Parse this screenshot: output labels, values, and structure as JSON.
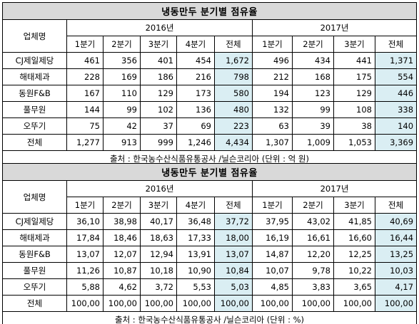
{
  "tables": [
    {
      "title": "냉동만두 분기별 점유율",
      "company_header": "업체명",
      "years": [
        "2016년",
        "2017년"
      ],
      "quarters_2016": [
        "1분기",
        "2분기",
        "3분기",
        "4분기",
        "전체"
      ],
      "quarters_2017": [
        "1분기",
        "2분기",
        "3분기",
        "전체"
      ],
      "rows": [
        {
          "name": "CJ제일제당",
          "v": [
            "461",
            "356",
            "401",
            "454",
            "1,672",
            "496",
            "434",
            "441",
            "1,371"
          ]
        },
        {
          "name": "해태제과",
          "v": [
            "228",
            "169",
            "186",
            "216",
            "798",
            "212",
            "168",
            "175",
            "554"
          ]
        },
        {
          "name": "동원F&B",
          "v": [
            "167",
            "110",
            "129",
            "173",
            "580",
            "194",
            "123",
            "129",
            "446"
          ]
        },
        {
          "name": "풀무원",
          "v": [
            "144",
            "99",
            "102",
            "136",
            "480",
            "132",
            "99",
            "108",
            "338"
          ]
        },
        {
          "name": "오뚜기",
          "v": [
            "75",
            "42",
            "37",
            "69",
            "223",
            "63",
            "39",
            "38",
            "140"
          ]
        },
        {
          "name": "전체",
          "v": [
            "1,277",
            "913",
            "999",
            "1,246",
            "4,434",
            "1,307",
            "1,009",
            "1,053",
            "3,369"
          ]
        }
      ],
      "source": "출처 : 한국농수산식품유통공사 /닐슨코리아 (단위 : 억 원)"
    },
    {
      "title": "냉동만두 분기별 점유율",
      "company_header": "업체명",
      "years": [
        "2016년",
        "2017년"
      ],
      "quarters_2016": [
        "1분기",
        "2분기",
        "3분기",
        "4분기",
        "전체"
      ],
      "quarters_2017": [
        "1분기",
        "2분기",
        "3분기",
        "전체"
      ],
      "rows": [
        {
          "name": "CJ제일제당",
          "v": [
            "36,10",
            "38,98",
            "40,17",
            "36,48",
            "37,72",
            "37,95",
            "43,02",
            "41,85",
            "40,69"
          ]
        },
        {
          "name": "해태제과",
          "v": [
            "17,84",
            "18,46",
            "18,63",
            "17,33",
            "18,00",
            "16,19",
            "16,61",
            "16,60",
            "16,44"
          ]
        },
        {
          "name": "동원F&B",
          "v": [
            "13,07",
            "12,07",
            "12,94",
            "13,91",
            "13,07",
            "14,87",
            "12,20",
            "12,25",
            "13,25"
          ]
        },
        {
          "name": "풀무원",
          "v": [
            "11,26",
            "10,87",
            "10,18",
            "10,90",
            "10,84",
            "10,07",
            "9,78",
            "10,22",
            "10,03"
          ]
        },
        {
          "name": "오뚜기",
          "v": [
            "5,88",
            "4,62",
            "3,72",
            "5,53",
            "5,03",
            "4,85",
            "3,83",
            "3,65",
            "4,17"
          ]
        },
        {
          "name": "전체",
          "v": [
            "100,00",
            "100,00",
            "100,00",
            "100,00",
            "100,00",
            "100,00",
            "100,00",
            "100,00",
            "100,00"
          ]
        }
      ],
      "source": "출처 : 한국농수산식품유통공사 /닐슨코리아 (단위 : %)"
    }
  ]
}
